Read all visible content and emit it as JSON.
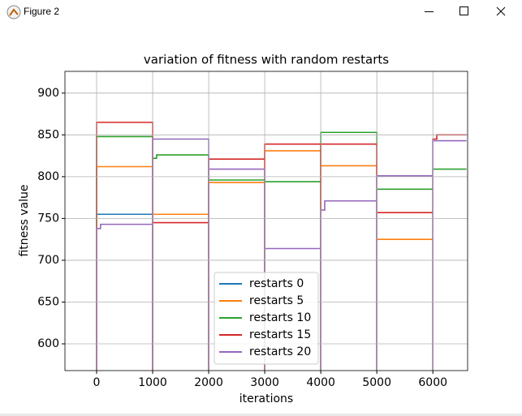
{
  "window": {
    "title": "Figure 2"
  },
  "chart_data": {
    "type": "line",
    "title": "variation of fitness with random restarts",
    "x_label": "iterations",
    "y_label": "fitness value",
    "xlim": [
      -565,
      6620
    ],
    "ylim": [
      568,
      926
    ],
    "xticks": [
      0,
      1000,
      2000,
      3000,
      4000,
      5000,
      6000
    ],
    "yticks": [
      600,
      650,
      700,
      750,
      800,
      850,
      900
    ],
    "grid": true,
    "legend": "lower center",
    "series": [
      {
        "name": "restarts 0",
        "color": "#1f77b4",
        "x": [
          0,
          0,
          1000
        ],
        "values": [
          550,
          755,
          755
        ]
      },
      {
        "name": "restarts 5",
        "color": "#ff7f0e",
        "x": [
          0,
          0,
          1000,
          1000,
          1000,
          2000,
          2000,
          2000,
          3000,
          3000,
          3000,
          4000,
          4000,
          4000,
          5000,
          5000,
          5000,
          6000
        ],
        "values": [
          550,
          812,
          812,
          550,
          755,
          755,
          550,
          793,
          793,
          550,
          831,
          831,
          550,
          813,
          813,
          550,
          725,
          725
        ]
      },
      {
        "name": "restarts 10",
        "color": "#2ca02c",
        "x": [
          0,
          0,
          1000,
          1000,
          1000,
          1070,
          1070,
          2000,
          2000,
          2000,
          3000,
          3000,
          3000,
          4000,
          4000,
          4000,
          5000,
          5000,
          5000,
          6000,
          6000,
          6000,
          6600
        ],
        "values": [
          550,
          848,
          848,
          550,
          822,
          822,
          826,
          826,
          550,
          796,
          796,
          550,
          794,
          794,
          550,
          853,
          853,
          550,
          785,
          785,
          550,
          809,
          809
        ]
      },
      {
        "name": "restarts 15",
        "color": "#d62728",
        "x": [
          0,
          0,
          1000,
          1000,
          1000,
          2000,
          2000,
          2000,
          3000,
          3000,
          3000,
          4000,
          4000,
          4000,
          5000,
          5000,
          5000,
          6000,
          6000,
          6000,
          6070,
          6070,
          6600
        ],
        "values": [
          550,
          865,
          865,
          550,
          745,
          745,
          550,
          821,
          821,
          550,
          839,
          839,
          550,
          839,
          839,
          550,
          757,
          757,
          550,
          845,
          845,
          850,
          850
        ]
      },
      {
        "name": "restarts 20",
        "color": "#9467bd",
        "x": [
          0,
          0,
          70,
          70,
          1000,
          1000,
          1000,
          2000,
          2000,
          2000,
          3000,
          3000,
          3000,
          4000,
          4000,
          4000,
          4070,
          4070,
          5000,
          5000,
          5000,
          6000,
          6000,
          6000,
          6600
        ],
        "values": [
          550,
          738,
          738,
          743,
          743,
          550,
          845,
          845,
          550,
          809,
          809,
          550,
          714,
          714,
          550,
          760,
          760,
          771,
          771,
          550,
          801,
          801,
          550,
          843,
          843
        ]
      }
    ]
  }
}
